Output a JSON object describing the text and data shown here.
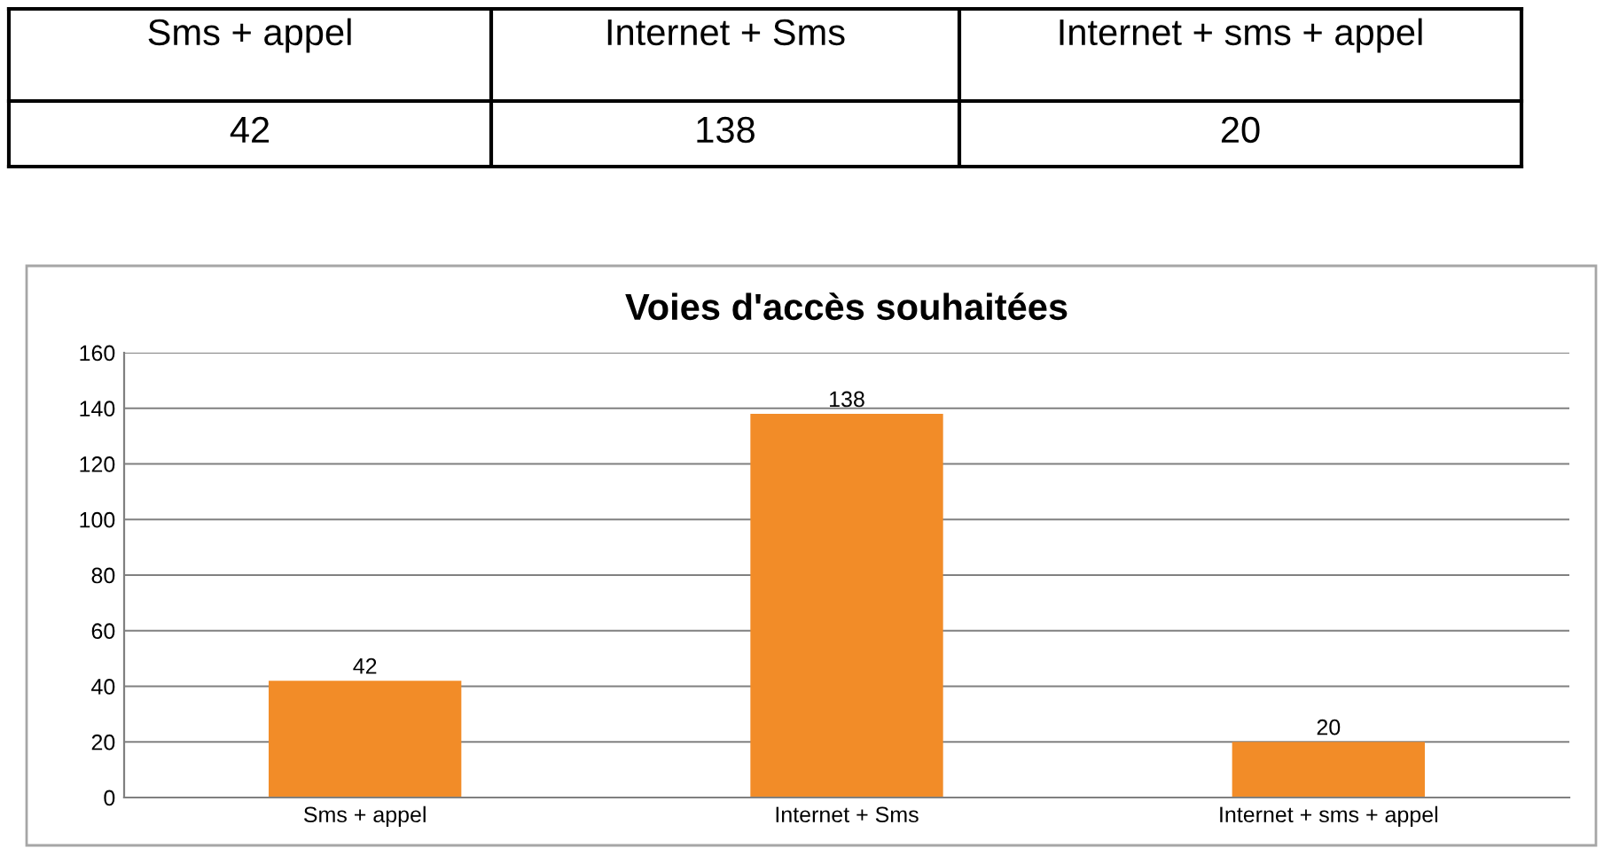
{
  "chart_data": {
    "type": "bar",
    "title": "Voies d'accès souhaitées",
    "categories": [
      "Sms + appel",
      "Internet + Sms",
      "Internet + sms + appel"
    ],
    "values": [
      42,
      138,
      20
    ],
    "value_labels": [
      "42",
      "138",
      "20"
    ],
    "annotations": [
      "42",
      "138",
      "20"
    ],
    "color": "#f28c28",
    "ylim": [
      0,
      160
    ],
    "yticks": [
      0,
      20,
      40,
      60,
      80,
      100,
      120,
      140,
      160
    ],
    "grid": "y",
    "data_labels": true
  }
}
